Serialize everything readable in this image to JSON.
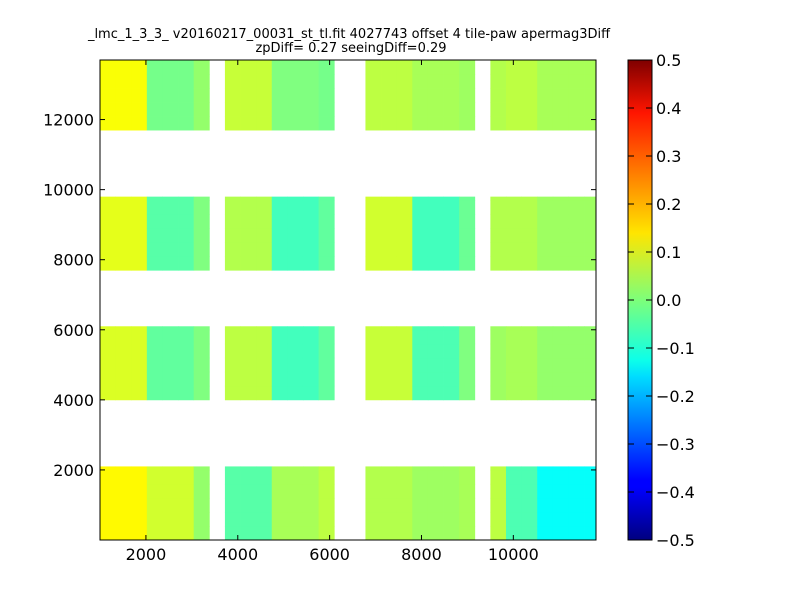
{
  "chart_data": {
    "type": "heatmap",
    "title_line1": "_lmc_1_3_3_ v20160217_00031_st_tl.fit 4027743 offset 4 tile-paw apermag3Diff",
    "title_line2": "zpDiff= 0.27 seeingDiff=0.29",
    "xlabel": "",
    "ylabel": "",
    "xlim": [
      1000,
      11800
    ],
    "ylim": [
      0,
      13700
    ],
    "x_ticks": [
      2000,
      4000,
      6000,
      8000,
      10000
    ],
    "x_tick_labels": [
      "2000",
      "4000",
      "6000",
      "8000",
      "10000"
    ],
    "y_ticks": [
      2000,
      4000,
      6000,
      8000,
      10000,
      12000
    ],
    "y_tick_labels": [
      "2000",
      "4000",
      "6000",
      "8000",
      "10000",
      "12000"
    ],
    "colorbar": {
      "colormap": "jet",
      "range": [
        -0.5,
        0.5
      ],
      "ticks": [
        0.5,
        0.4,
        0.3,
        0.2,
        0.1,
        0.0,
        -0.1,
        -0.2,
        -0.3,
        -0.4,
        -0.5
      ],
      "tick_labels": [
        "0.5",
        "0.4",
        "0.3",
        "0.2",
        "0.1",
        "0.0",
        "−0.1",
        "−0.2",
        "−0.3",
        "−0.4",
        "−0.5"
      ]
    },
    "grid": false,
    "cell_size": [
      340,
      400
    ],
    "column_x_ranges": [
      [
        1000,
        2020
      ],
      [
        2020,
        3040
      ],
      [
        3040,
        3380
      ],
      [
        3720,
        4740
      ],
      [
        4740,
        5760
      ],
      [
        5760,
        6100
      ],
      [
        6780,
        7800
      ],
      [
        7800,
        8820
      ],
      [
        8820,
        9160
      ],
      [
        9500,
        9840
      ],
      [
        9840,
        10520
      ],
      [
        10520,
        11800
      ]
    ],
    "row_blocks": [
      {
        "y_range": [
          0,
          2100
        ],
        "values": [
          0.13,
          0.08,
          0.02,
          -0.04,
          0.04,
          0.06,
          0.05,
          0.03,
          0.04,
          0.06,
          -0.05,
          -0.12
        ]
      },
      {
        "y_range": [
          4000,
          6100
        ],
        "values": [
          0.09,
          -0.03,
          0.0,
          0.06,
          -0.06,
          -0.03,
          0.07,
          -0.05,
          0.0,
          0.03,
          0.04,
          0.02
        ]
      },
      {
        "y_range": [
          7700,
          9800
        ],
        "values": [
          0.1,
          -0.04,
          0.0,
          0.05,
          -0.06,
          -0.03,
          0.08,
          -0.06,
          -0.02,
          0.05,
          0.05,
          0.03
        ]
      },
      {
        "y_range": [
          11700,
          13700
        ],
        "values": [
          0.12,
          -0.01,
          0.02,
          0.07,
          0.0,
          -0.01,
          0.06,
          0.04,
          0.03,
          0.05,
          0.06,
          0.04
        ]
      }
    ]
  }
}
